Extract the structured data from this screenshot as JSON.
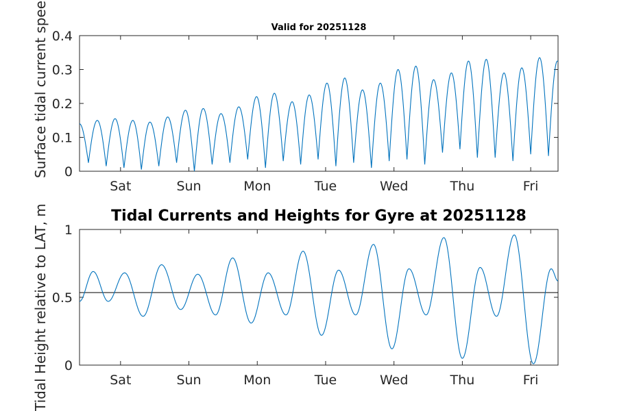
{
  "chart_data": [
    {
      "type": "line",
      "title": "Valid for 20251128",
      "xlabel": "",
      "ylabel": "Surface tidal current speed, knots",
      "x_range_days": [
        0,
        7
      ],
      "x_tick_positions_days": [
        0.6,
        1.6,
        2.6,
        3.6,
        4.6,
        5.6,
        6.6
      ],
      "x_tick_labels": [
        "Sat",
        "Sun",
        "Mon",
        "Tue",
        "Wed",
        "Thu",
        "Fri"
      ],
      "ylim": [
        0,
        0.4
      ],
      "y_ticks": [
        0,
        0.1,
        0.2,
        0.3,
        0.4
      ],
      "y_tick_labels": [
        "0",
        "0.1",
        "0.2",
        "0.3",
        "0.4"
      ],
      "series": [
        {
          "name": "speed",
          "color": "#0072BD",
          "semidiurnal_period_days": 0.5175,
          "peak_times_days": [
            0.0,
            0.26,
            0.52,
            0.78,
            1.03,
            1.29,
            1.55,
            1.81,
            2.07,
            2.33,
            2.59,
            2.85,
            3.11,
            3.36,
            3.62,
            3.88,
            4.14,
            4.4,
            4.66,
            4.92,
            5.18,
            5.44,
            5.69,
            5.95,
            6.21,
            6.47,
            6.73,
            6.99
          ],
          "peak_values": [
            0.14,
            0.15,
            0.155,
            0.15,
            0.145,
            0.16,
            0.18,
            0.185,
            0.17,
            0.19,
            0.22,
            0.23,
            0.205,
            0.225,
            0.26,
            0.275,
            0.24,
            0.26,
            0.3,
            0.31,
            0.27,
            0.29,
            0.325,
            0.33,
            0.29,
            0.305,
            0.335,
            0.325
          ],
          "trough_values": [
            0.025,
            0.015,
            0.01,
            0.005,
            0.015,
            0.025,
            0.0,
            0.02,
            0.025,
            0.035,
            0.01,
            0.03,
            0.02,
            0.035,
            0.015,
            0.025,
            0.01,
            0.03,
            0.035,
            0.02,
            0.055,
            0.065,
            0.04,
            0.04,
            0.03,
            0.05,
            0.045
          ]
        }
      ]
    },
    {
      "type": "line",
      "title": "Tidal Currents and Heights for Gyre at 20251128",
      "xlabel": "",
      "ylabel": "Tidal Height relative to LAT, m",
      "x_range_days": [
        0,
        7
      ],
      "x_tick_positions_days": [
        0.6,
        1.6,
        2.6,
        3.6,
        4.6,
        5.6,
        6.6
      ],
      "x_tick_labels": [
        "Sat",
        "Sun",
        "Mon",
        "Tue",
        "Wed",
        "Thu",
        "Fri"
      ],
      "ylim": [
        0,
        1
      ],
      "y_ticks": [
        0,
        0.5,
        1
      ],
      "y_tick_labels": [
        "0",
        "0.5",
        "1"
      ],
      "reference_line": 0.535,
      "series": [
        {
          "name": "height",
          "color": "#0072BD",
          "extrema": [
            [
              0.0,
              0.47
            ],
            [
              0.2,
              0.69
            ],
            [
              0.42,
              0.47
            ],
            [
              0.66,
              0.68
            ],
            [
              0.93,
              0.36
            ],
            [
              1.2,
              0.74
            ],
            [
              1.48,
              0.41
            ],
            [
              1.73,
              0.67
            ],
            [
              1.99,
              0.37
            ],
            [
              2.24,
              0.79
            ],
            [
              2.51,
              0.31
            ],
            [
              2.76,
              0.68
            ],
            [
              3.02,
              0.37
            ],
            [
              3.27,
              0.84
            ],
            [
              3.54,
              0.22
            ],
            [
              3.79,
              0.7
            ],
            [
              4.04,
              0.37
            ],
            [
              4.3,
              0.89
            ],
            [
              4.57,
              0.12
            ],
            [
              4.82,
              0.71
            ],
            [
              5.07,
              0.37
            ],
            [
              5.33,
              0.94
            ],
            [
              5.6,
              0.05
            ],
            [
              5.86,
              0.72
            ],
            [
              6.1,
              0.36
            ],
            [
              6.36,
              0.96
            ],
            [
              6.64,
              0.01
            ],
            [
              6.9,
              0.71
            ],
            [
              7.0,
              0.62
            ]
          ]
        }
      ]
    }
  ]
}
